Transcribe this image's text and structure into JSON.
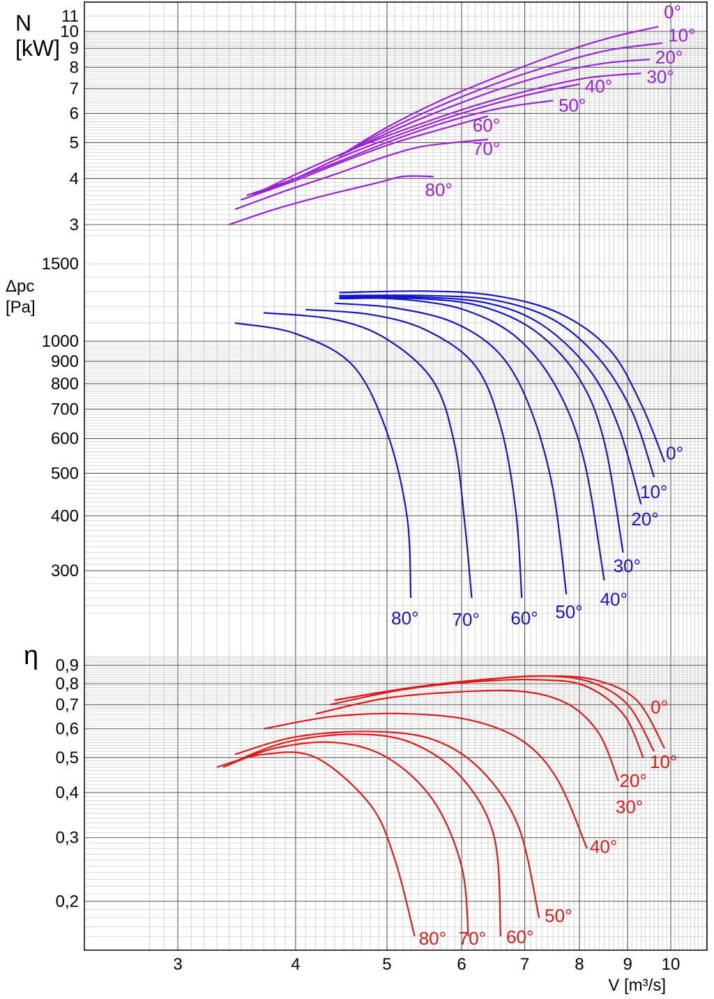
{
  "chart_data": {
    "type": "line",
    "x_scale": "log",
    "xlim": [
      2.8,
      11
    ],
    "x_ticks": [
      "3",
      "4",
      "5",
      "6",
      "7",
      "8",
      "9",
      "10"
    ],
    "x_tick_values": [
      3,
      4,
      5,
      6,
      7,
      8,
      9,
      10
    ],
    "xlabel": "V [m³/s]",
    "grid": true,
    "colors": {
      "power": "#9a20d8",
      "pressure": "#1414c8",
      "efficiency": "#e01818"
    },
    "panels": [
      {
        "id": "power",
        "ylabel": "N\n[kW]",
        "y_scale": "log",
        "ylim": [
          2.8,
          11.5
        ],
        "y_ticks": [
          "3",
          "4",
          "5",
          "6",
          "7",
          "8",
          "9",
          "10",
          "11"
        ],
        "y_tick_values": [
          3,
          4,
          5,
          6,
          7,
          8,
          9,
          10,
          11
        ],
        "series": [
          {
            "name": "0°",
            "x": [
              4.45,
              5.0,
              5.7,
              6.6,
              7.6,
              8.6,
              9.7
            ],
            "y": [
              4.6,
              5.5,
              6.5,
              7.6,
              8.7,
              9.6,
              10.3
            ]
          },
          {
            "name": "10°",
            "x": [
              4.45,
              5.0,
              5.7,
              6.6,
              7.6,
              8.6,
              9.8
            ],
            "y": [
              4.6,
              5.4,
              6.3,
              7.3,
              8.2,
              8.9,
              9.3
            ]
          },
          {
            "name": "20°",
            "x": [
              4.45,
              5.0,
              5.7,
              6.6,
              7.5,
              8.5,
              9.5
            ],
            "y": [
              4.6,
              5.3,
              6.1,
              7.0,
              7.7,
              8.2,
              8.4
            ]
          },
          {
            "name": "30°",
            "x": [
              3.6,
              4.0,
              4.6,
              5.3,
              6.2,
              7.2,
              8.2,
              9.3
            ],
            "y": [
              3.6,
              4.1,
              4.8,
              5.5,
              6.3,
              7.0,
              7.5,
              7.7
            ]
          },
          {
            "name": "40°",
            "x": [
              3.6,
              4.0,
              4.5,
              5.2,
              6.0,
              7.0,
              8.0
            ],
            "y": [
              3.6,
              4.0,
              4.6,
              5.3,
              6.0,
              6.7,
              7.2
            ]
          },
          {
            "name": "50°",
            "x": [
              3.55,
              4.0,
              4.5,
              5.1,
              5.8,
              6.6,
              7.5
            ],
            "y": [
              3.6,
              4.0,
              4.5,
              5.1,
              5.7,
              6.2,
              6.5
            ]
          },
          {
            "name": "60°",
            "x": [
              3.5,
              4.0,
              4.5,
              5.1,
              5.8,
              6.4
            ],
            "y": [
              3.5,
              3.95,
              4.45,
              5.0,
              5.5,
              5.9
            ]
          },
          {
            "name": "70°",
            "x": [
              3.45,
              3.9,
              4.4,
              5.0,
              5.5,
              6.4
            ],
            "y": [
              3.3,
              3.7,
              4.1,
              4.6,
              4.9,
              5.1
            ]
          },
          {
            "name": "80°",
            "x": [
              3.4,
              3.8,
              4.3,
              4.9,
              5.2,
              5.6
            ],
            "y": [
              3.0,
              3.3,
              3.6,
              3.9,
              4.05,
              4.05
            ]
          }
        ]
      },
      {
        "id": "pressure",
        "ylabel": "Δpc\n[Pa]",
        "y_scale": "log",
        "ylim": [
          240,
          1550
        ],
        "y_ticks": [
          "300",
          "400",
          "500",
          "600",
          "700",
          "800",
          "900",
          "1000",
          "1500"
        ],
        "y_tick_values": [
          300,
          400,
          500,
          600,
          700,
          800,
          900,
          1000,
          1500
        ],
        "series": [
          {
            "name": "0°",
            "x": [
              4.45,
              5.5,
              6.5,
              7.6,
              8.6,
              9.3,
              9.85
            ],
            "y": [
              1290,
              1300,
              1270,
              1160,
              960,
              720,
              530
            ]
          },
          {
            "name": "10°",
            "x": [
              4.45,
              5.5,
              6.5,
              7.5,
              8.4,
              9.1,
              9.6
            ],
            "y": [
              1270,
              1270,
              1240,
              1120,
              910,
              690,
              490
            ]
          },
          {
            "name": "20°",
            "x": [
              4.45,
              5.4,
              6.4,
              7.3,
              8.2,
              8.8,
              9.3
            ],
            "y": [
              1260,
              1260,
              1220,
              1090,
              860,
              640,
              425
            ]
          },
          {
            "name": "30°",
            "x": [
              4.45,
              5.4,
              6.3,
              7.2,
              8.0,
              8.5,
              8.9
            ],
            "y": [
              1250,
              1250,
              1200,
              1050,
              820,
              590,
              330
            ]
          },
          {
            "name": "40°",
            "x": [
              4.45,
              5.3,
              6.1,
              6.9,
              7.6,
              8.1,
              8.5
            ],
            "y": [
              1260,
              1240,
              1170,
              1010,
              770,
              530,
              285
            ]
          },
          {
            "name": "50°",
            "x": [
              4.4,
              5.1,
              5.9,
              6.6,
              7.1,
              7.5,
              7.75
            ],
            "y": [
              1220,
              1190,
              1100,
              930,
              700,
              460,
              265
            ]
          },
          {
            "name": "60°",
            "x": [
              4.1,
              4.8,
              5.5,
              6.2,
              6.6,
              6.85,
              6.95
            ],
            "y": [
              1180,
              1150,
              1060,
              880,
              640,
              410,
              260
            ]
          },
          {
            "name": "70°",
            "x": [
              3.7,
              4.4,
              5.0,
              5.6,
              5.9,
              6.05,
              6.15
            ],
            "y": [
              1160,
              1120,
              1010,
              810,
              580,
              380,
              260
            ]
          },
          {
            "name": "80°",
            "x": [
              3.45,
              4.0,
              4.6,
              5.0,
              5.25,
              5.3
            ],
            "y": [
              1100,
              1040,
              880,
              620,
              400,
              260
            ]
          }
        ]
      },
      {
        "id": "efficiency",
        "ylabel": "η",
        "y_scale": "log",
        "ylim": [
          0.16,
          0.95
        ],
        "y_ticks": [
          "0,2",
          "0,3",
          "0,4",
          "0,5",
          "0,6",
          "0,7",
          "0,8",
          "0,9"
        ],
        "y_tick_values": [
          0.2,
          0.3,
          0.4,
          0.5,
          0.6,
          0.7,
          0.8,
          0.9
        ],
        "series": [
          {
            "name": "0°",
            "x": [
              4.4,
              5.3,
              6.3,
              7.3,
              8.3,
              9.2,
              9.85
            ],
            "y": [
              0.72,
              0.78,
              0.82,
              0.84,
              0.82,
              0.72,
              0.53
            ]
          },
          {
            "name": "10°",
            "x": [
              4.4,
              5.3,
              6.3,
              7.3,
              8.2,
              9.0,
              9.6
            ],
            "y": [
              0.72,
              0.78,
              0.82,
              0.84,
              0.81,
              0.7,
              0.52
            ]
          },
          {
            "name": "20°",
            "x": [
              4.35,
              5.2,
              6.2,
              7.2,
              8.1,
              8.9,
              9.35
            ],
            "y": [
              0.7,
              0.77,
              0.81,
              0.82,
              0.79,
              0.66,
              0.5
            ]
          },
          {
            "name": "30°",
            "x": [
              4.2,
              5.0,
              6.0,
              7.0,
              7.8,
              8.4,
              8.8
            ],
            "y": [
              0.66,
              0.73,
              0.76,
              0.76,
              0.7,
              0.58,
              0.43
            ]
          },
          {
            "name": "40°",
            "x": [
              3.7,
              4.4,
              5.3,
              6.2,
              7.0,
              7.6,
              8.15
            ],
            "y": [
              0.6,
              0.65,
              0.66,
              0.63,
              0.55,
              0.43,
              0.28
            ]
          },
          {
            "name": "50°",
            "x": [
              3.45,
              4.0,
              4.8,
              5.6,
              6.3,
              6.9,
              7.25
            ],
            "y": [
              0.51,
              0.57,
              0.59,
              0.56,
              0.46,
              0.32,
              0.18
            ]
          },
          {
            "name": "60°",
            "x": [
              3.4,
              3.9,
              4.6,
              5.3,
              6.0,
              6.5,
              6.6
            ],
            "y": [
              0.48,
              0.55,
              0.58,
              0.55,
              0.44,
              0.3,
              0.16
            ]
          },
          {
            "name": "70°",
            "x": [
              3.35,
              3.8,
              4.4,
              5.0,
              5.6,
              6.0,
              6.1
            ],
            "y": [
              0.47,
              0.53,
              0.55,
              0.5,
              0.38,
              0.25,
              0.16
            ]
          },
          {
            "name": "80°",
            "x": [
              3.3,
              3.7,
              4.2,
              4.8,
              5.1,
              5.35
            ],
            "y": [
              0.47,
              0.51,
              0.5,
              0.37,
              0.26,
              0.16
            ]
          }
        ]
      }
    ]
  }
}
